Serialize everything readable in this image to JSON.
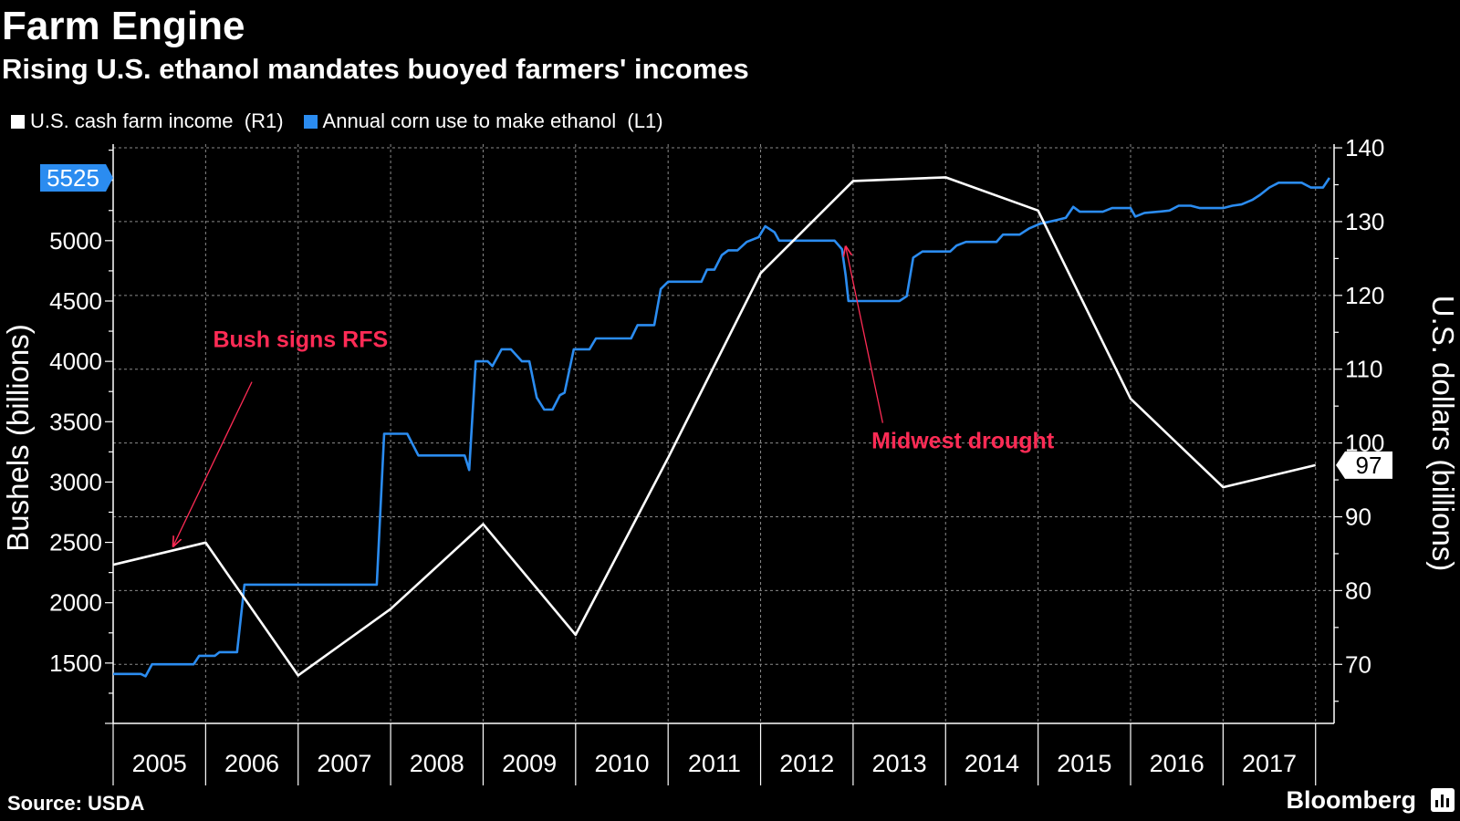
{
  "title": "Farm Engine",
  "subtitle": "Rising U.S. ethanol mandates buoyed farmers' incomes",
  "source": "Source: USDA",
  "brand": "Bloomberg",
  "colors": {
    "background": "#000000",
    "corn": "#2b8cf0",
    "income": "#ffffff",
    "annotation": "#ff2b55",
    "grid": "#8a8a8a"
  },
  "chart_data": {
    "type": "line",
    "legend": [
      {
        "label": "U.S. cash farm income",
        "tag": "(R1)",
        "color": "#ffffff"
      },
      {
        "label": "Annual corn use to make ethanol",
        "tag": "(L1)",
        "color": "#2b8cf0"
      }
    ],
    "x_axis": {
      "min": 2004.5,
      "max": 2017.7,
      "ticks": [
        "2005",
        "2006",
        "2007",
        "2008",
        "2009",
        "2010",
        "2011",
        "2012",
        "2013",
        "2014",
        "2015",
        "2016",
        "2017"
      ]
    },
    "left_axis": {
      "label": "Bushels (billions)",
      "min": 1000,
      "max": 5800,
      "ticks": [
        1500,
        2000,
        2500,
        3000,
        3500,
        4000,
        4500,
        5000
      ]
    },
    "right_axis": {
      "label": "U.S. dollars (billions)",
      "min": 62,
      "max": 140.5,
      "ticks": [
        70,
        80,
        90,
        100,
        110,
        120,
        130,
        140
      ]
    },
    "series": [
      {
        "name": "Annual corn use to make ethanol",
        "axis": "left",
        "color": "#2b8cf0",
        "last_value_label": "5525",
        "points": [
          [
            2004.5,
            1410
          ],
          [
            2004.8,
            1410
          ],
          [
            2004.85,
            1390
          ],
          [
            2004.92,
            1490
          ],
          [
            2005.37,
            1490
          ],
          [
            2005.43,
            1560
          ],
          [
            2005.6,
            1560
          ],
          [
            2005.65,
            1590
          ],
          [
            2005.84,
            1590
          ],
          [
            2005.92,
            2150
          ],
          [
            2007.35,
            2150
          ],
          [
            2007.43,
            3400
          ],
          [
            2007.68,
            3400
          ],
          [
            2007.8,
            3220
          ],
          [
            2008.3,
            3220
          ],
          [
            2008.35,
            3100
          ],
          [
            2008.42,
            4000
          ],
          [
            2008.55,
            4000
          ],
          [
            2008.6,
            3960
          ],
          [
            2008.7,
            4100
          ],
          [
            2008.8,
            4100
          ],
          [
            2008.92,
            4000
          ],
          [
            2009.0,
            4000
          ],
          [
            2009.08,
            3700
          ],
          [
            2009.16,
            3600
          ],
          [
            2009.25,
            3600
          ],
          [
            2009.33,
            3720
          ],
          [
            2009.38,
            3740
          ],
          [
            2009.48,
            4100
          ],
          [
            2009.65,
            4100
          ],
          [
            2009.72,
            4190
          ],
          [
            2010.1,
            4190
          ],
          [
            2010.17,
            4300
          ],
          [
            2010.35,
            4300
          ],
          [
            2010.42,
            4600
          ],
          [
            2010.5,
            4660
          ],
          [
            2010.86,
            4660
          ],
          [
            2010.92,
            4760
          ],
          [
            2011.0,
            4760
          ],
          [
            2011.08,
            4880
          ],
          [
            2011.15,
            4920
          ],
          [
            2011.25,
            4920
          ],
          [
            2011.35,
            4990
          ],
          [
            2011.48,
            5030
          ],
          [
            2011.55,
            5120
          ],
          [
            2011.65,
            5070
          ],
          [
            2011.7,
            5000
          ],
          [
            2012.3,
            5000
          ],
          [
            2012.38,
            4930
          ],
          [
            2012.42,
            4710
          ],
          [
            2012.45,
            4500
          ],
          [
            2013.0,
            4500
          ],
          [
            2013.08,
            4540
          ],
          [
            2013.15,
            4860
          ],
          [
            2013.25,
            4910
          ],
          [
            2013.55,
            4910
          ],
          [
            2013.62,
            4960
          ],
          [
            2013.72,
            4990
          ],
          [
            2014.05,
            4990
          ],
          [
            2014.12,
            5050
          ],
          [
            2014.3,
            5050
          ],
          [
            2014.4,
            5100
          ],
          [
            2014.52,
            5140
          ],
          [
            2014.7,
            5170
          ],
          [
            2014.8,
            5190
          ],
          [
            2014.88,
            5280
          ],
          [
            2014.95,
            5240
          ],
          [
            2015.2,
            5240
          ],
          [
            2015.3,
            5270
          ],
          [
            2015.5,
            5270
          ],
          [
            2015.55,
            5200
          ],
          [
            2015.65,
            5230
          ],
          [
            2015.8,
            5240
          ],
          [
            2015.92,
            5250
          ],
          [
            2016.02,
            5290
          ],
          [
            2016.15,
            5290
          ],
          [
            2016.25,
            5270
          ],
          [
            2016.5,
            5270
          ],
          [
            2016.6,
            5290
          ],
          [
            2016.7,
            5300
          ],
          [
            2016.82,
            5340
          ],
          [
            2016.9,
            5380
          ],
          [
            2017.0,
            5440
          ],
          [
            2017.1,
            5480
          ],
          [
            2017.35,
            5480
          ],
          [
            2017.45,
            5440
          ],
          [
            2017.58,
            5440
          ],
          [
            2017.65,
            5520
          ]
        ]
      },
      {
        "name": "U.S. cash farm income",
        "axis": "right",
        "color": "#ffffff",
        "last_value_label": "97",
        "points": [
          [
            2004.5,
            83.5
          ],
          [
            2005.5,
            86.5
          ],
          [
            2006.5,
            68.5
          ],
          [
            2007.5,
            77.5
          ],
          [
            2008.5,
            89
          ],
          [
            2009.5,
            74
          ],
          [
            2010.5,
            98
          ],
          [
            2011.5,
            123
          ],
          [
            2012.5,
            135.5
          ],
          [
            2013.5,
            136
          ],
          [
            2014.5,
            131.5
          ],
          [
            2015.5,
            106
          ],
          [
            2016.5,
            94
          ],
          [
            2017.5,
            97
          ]
        ]
      }
    ],
    "annotations": [
      {
        "text": "Bush signs RFS",
        "text_x": 2005.58,
        "text_y": 4120,
        "arrow_from": [
          2006.0,
          3830
        ],
        "arrow_to": [
          2005.15,
          2470
        ]
      },
      {
        "text": "Midwest drought",
        "text_x": 2012.7,
        "text_y": 3280,
        "arrow_from": [
          2012.82,
          3490
        ],
        "arrow_to": [
          2012.42,
          4950
        ]
      }
    ]
  }
}
